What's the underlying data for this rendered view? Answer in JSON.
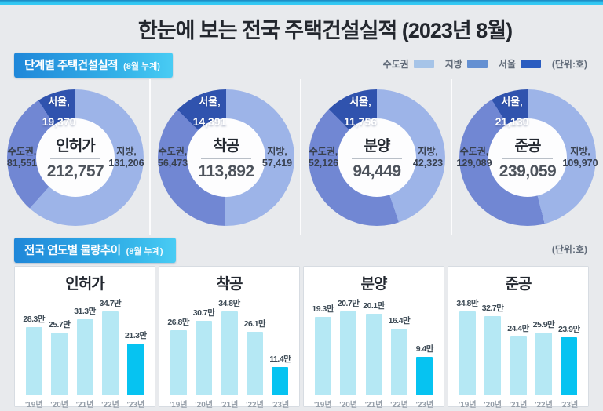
{
  "page": {
    "title": "한눈에 보는 전국 주택건설실적 (2023년 8월)"
  },
  "section_stage": {
    "label": "단계별 주택건설실적",
    "sublabel": "(8월 누계)",
    "unit": "(단위:호)",
    "legend": [
      {
        "label": "수도권",
        "color": "#a6c4e8"
      },
      {
        "label": "지방",
        "color": "#6490d2"
      },
      {
        "label": "서울",
        "color": "#2a5cc0"
      }
    ]
  },
  "section_trend": {
    "label": "전국 연도별 물량추이",
    "sublabel": "(8월 누계)",
    "unit": "(단위:호)"
  },
  "colors": {
    "donut_light": "#9db4e8",
    "donut_medium": "#7187d3",
    "donut_dark": "#3053ae",
    "bar_normal": "#b5e8f4",
    "bar_highlight": "#06c3f1"
  },
  "chart_data": [
    {
      "type": "donut",
      "title": "인허가",
      "total": "212,757",
      "slices": [
        {
          "region": "지방",
          "value": "131,206",
          "pct": 61.7,
          "shade": "light"
        },
        {
          "region": "수도권",
          "value": "81,551",
          "pct": 29.2,
          "shade": "medium"
        },
        {
          "region": "서울",
          "value": "19,370",
          "pct": 9.1,
          "shade": "dark"
        }
      ]
    },
    {
      "type": "donut",
      "title": "착공",
      "total": "113,892",
      "slices": [
        {
          "region": "지방",
          "value": "57,419",
          "pct": 50.4,
          "shade": "light"
        },
        {
          "region": "수도권",
          "value": "56,473",
          "pct": 37.0,
          "shade": "medium"
        },
        {
          "region": "서울",
          "value": "14,391",
          "pct": 12.6,
          "shade": "dark"
        }
      ]
    },
    {
      "type": "donut",
      "title": "분양",
      "total": "94,449",
      "slices": [
        {
          "region": "지방",
          "value": "42,323",
          "pct": 44.8,
          "shade": "light"
        },
        {
          "region": "수도권",
          "value": "52,126",
          "pct": 42.8,
          "shade": "medium"
        },
        {
          "region": "서울",
          "value": "11,756",
          "pct": 12.4,
          "shade": "dark"
        }
      ]
    },
    {
      "type": "donut",
      "title": "준공",
      "total": "239,059",
      "slices": [
        {
          "region": "지방",
          "value": "109,970",
          "pct": 46.0,
          "shade": "light"
        },
        {
          "region": "수도권",
          "value": "129,089",
          "pct": 45.2,
          "shade": "medium"
        },
        {
          "region": "서울",
          "value": "21,130",
          "pct": 8.8,
          "shade": "dark"
        }
      ]
    },
    {
      "type": "bar",
      "title": "인허가",
      "categories": [
        "'19년",
        "'20년",
        "'21년",
        "'22년",
        "'23년"
      ],
      "values": [
        28.3,
        25.7,
        31.3,
        34.7,
        21.3
      ],
      "value_labels": [
        "28.3만",
        "25.7만",
        "31.3만",
        "34.7만",
        "21.3만"
      ],
      "highlight_index": 4,
      "ylabel": "",
      "xlabel": ""
    },
    {
      "type": "bar",
      "title": "착공",
      "categories": [
        "'19년",
        "'20년",
        "'21년",
        "'22년",
        "'23년"
      ],
      "values": [
        26.8,
        30.7,
        34.8,
        26.1,
        11.4
      ],
      "value_labels": [
        "26.8만",
        "30.7만",
        "34.8만",
        "26.1만",
        "11.4만"
      ],
      "highlight_index": 4,
      "ylabel": "",
      "xlabel": ""
    },
    {
      "type": "bar",
      "title": "분양",
      "categories": [
        "'19년",
        "'20년",
        "'21년",
        "'22년",
        "'23년"
      ],
      "values": [
        19.3,
        20.7,
        20.1,
        16.4,
        9.4
      ],
      "value_labels": [
        "19.3만",
        "20.7만",
        "20.1만",
        "16.4만",
        "9.4만"
      ],
      "highlight_index": 4,
      "ylabel": "",
      "xlabel": ""
    },
    {
      "type": "bar",
      "title": "준공",
      "categories": [
        "'19년",
        "'20년",
        "'21년",
        "'22년",
        "'23년"
      ],
      "values": [
        34.8,
        32.7,
        24.4,
        25.9,
        23.9
      ],
      "value_labels": [
        "34.8만",
        "32.7만",
        "24.4만",
        "25.9만",
        "23.9만"
      ],
      "highlight_index": 4,
      "ylabel": "",
      "xlabel": ""
    }
  ]
}
